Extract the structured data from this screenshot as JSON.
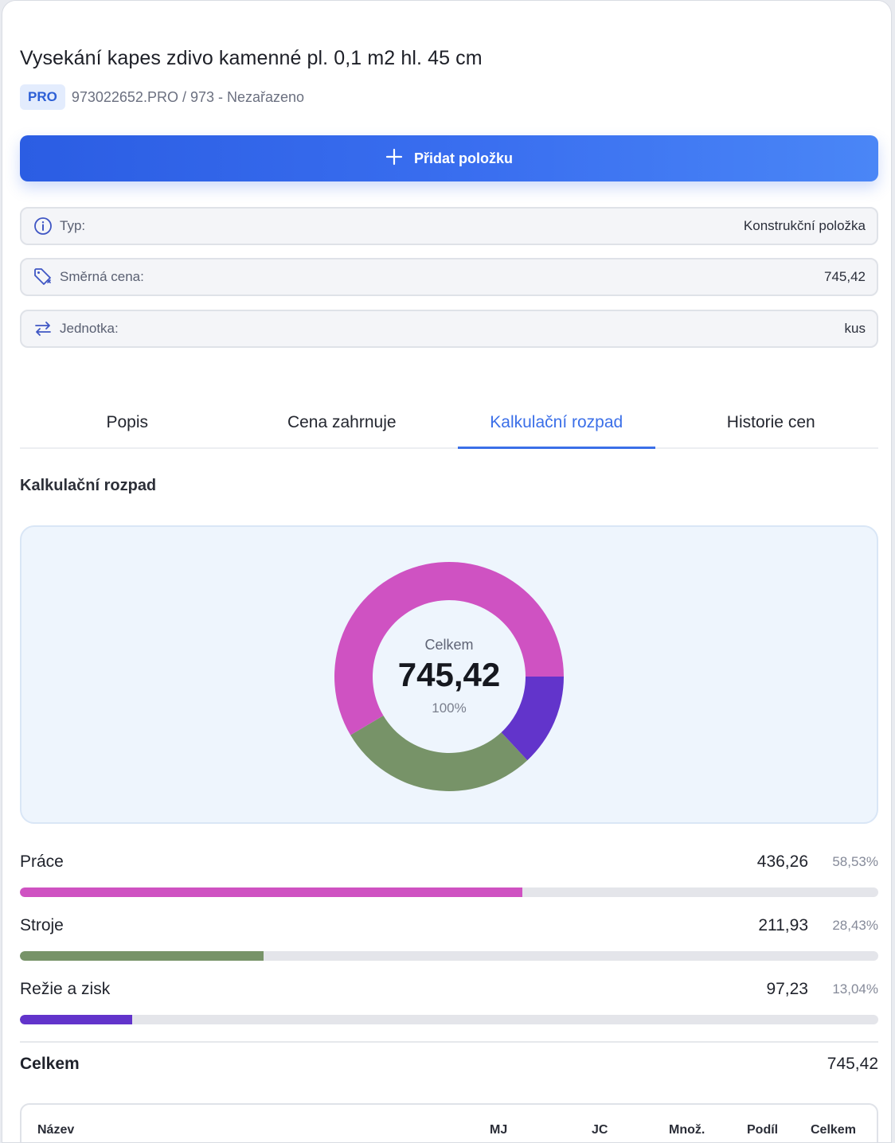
{
  "item": {
    "title": "Vysekání kapes zdivo kamenné pl. 0,1 m2 hl. 45 cm",
    "badge": "PRO",
    "breadcrumb": "973022652.PRO / 973 - Nezařazeno"
  },
  "actions": {
    "add_label": "Přidat položku"
  },
  "info": [
    {
      "icon": "info-icon",
      "key": "Typ:",
      "value": "Konstrukční položka"
    },
    {
      "icon": "price-tag-icon",
      "key": "Směrná cena:",
      "value": "745,42"
    },
    {
      "icon": "swap-arrows-icon",
      "key": "Jednotka:",
      "value": "kus"
    }
  ],
  "tabs": [
    {
      "label": "Popis",
      "active": false
    },
    {
      "label": "Cena zahrnuje",
      "active": false
    },
    {
      "label": "Kalkulační rozpad",
      "active": true
    },
    {
      "label": "Historie cen",
      "active": false
    }
  ],
  "section_title": "Kalkulační rozpad",
  "chart_data": {
    "type": "pie",
    "center_label": "Celkem",
    "center_value": "745,42",
    "center_percent": "100%",
    "slices": [
      {
        "label": "Práce",
        "value": 436.26,
        "percent": 58.53,
        "color": "#cf52c2"
      },
      {
        "label": "Stroje",
        "value": 211.93,
        "percent": 28.43,
        "color": "#779368"
      },
      {
        "label": "Režie a zisk",
        "value": 97.23,
        "percent": 13.04,
        "color": "#6234cb"
      }
    ]
  },
  "breakdown": [
    {
      "label": "Práce",
      "amount": "436,26",
      "percent": "58,53%",
      "fraction": 0.5853,
      "color": "#cf52c2"
    },
    {
      "label": "Stroje",
      "amount": "211,93",
      "percent": "28,43%",
      "fraction": 0.2843,
      "color": "#779368"
    },
    {
      "label": "Režie a zisk",
      "amount": "97,23",
      "percent": "13,04%",
      "fraction": 0.1304,
      "color": "#6234cb"
    }
  ],
  "total": {
    "label": "Celkem",
    "amount": "745,42"
  },
  "table": {
    "columns": [
      "Název",
      "MJ",
      "JC",
      "Množ.",
      "Podíl",
      "Celkem"
    ]
  }
}
